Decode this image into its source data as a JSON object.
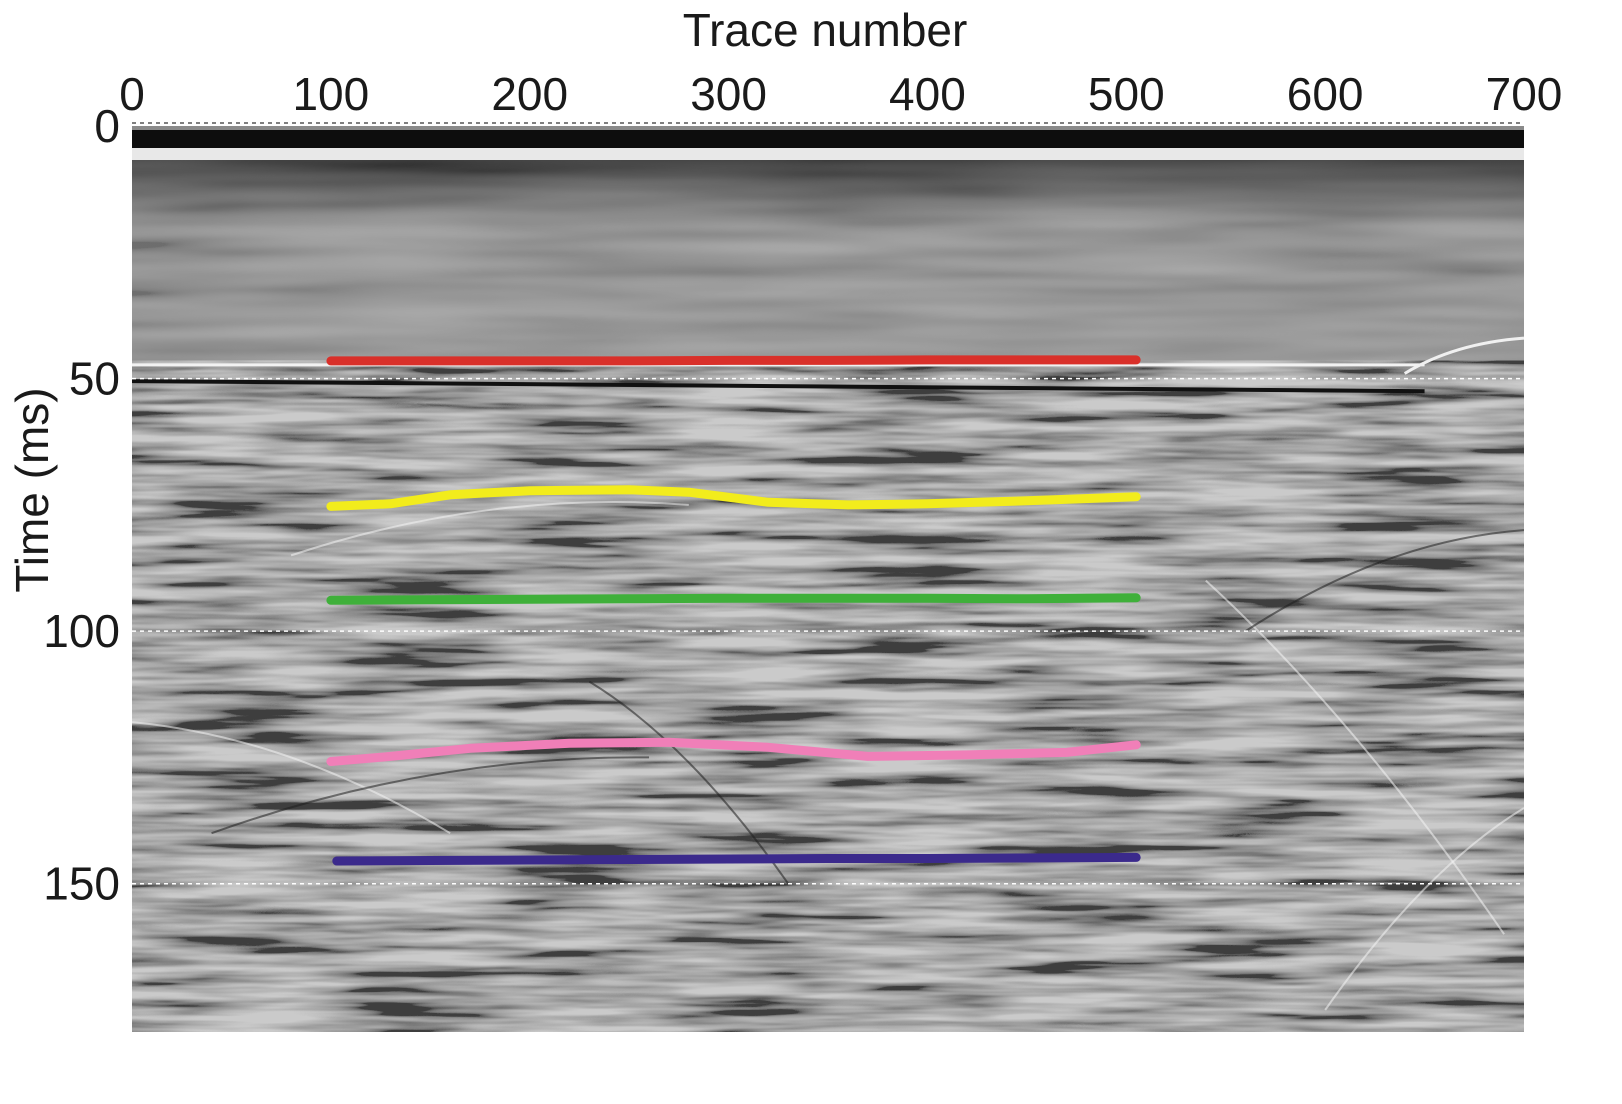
{
  "chart_data": {
    "type": "line",
    "xlabel": "Trace number",
    "ylabel": "Time (ms)",
    "xlim": [
      0,
      700
    ],
    "ylim": [
      0,
      178
    ],
    "y_inverted": true,
    "x_ticks": [
      0,
      100,
      200,
      300,
      400,
      500,
      600,
      700
    ],
    "x_tick_labels": [
      "0",
      "100",
      "200",
      "300",
      "400",
      "500",
      "600",
      "700"
    ],
    "y_ticks": [
      0,
      50,
      100,
      150
    ],
    "y_tick_labels": [
      "0",
      "50",
      "100",
      "150"
    ],
    "gridlines_ms": [
      0,
      50,
      100,
      150
    ],
    "background": "grayscale seismic section",
    "series": [
      {
        "color": "#d9302a",
        "x": [
          100,
          150,
          200,
          250,
          300,
          350,
          400,
          450,
          505
        ],
        "y": [
          46.5,
          46.5,
          46.5,
          46.5,
          46.4,
          46.4,
          46.3,
          46.3,
          46.3
        ]
      },
      {
        "color": "#f2ec1c",
        "x": [
          100,
          130,
          160,
          200,
          250,
          280,
          320,
          360,
          400,
          450,
          505
        ],
        "y": [
          75.3,
          74.8,
          73.0,
          72.2,
          72.0,
          72.5,
          74.5,
          75.0,
          74.8,
          74.2,
          73.4
        ]
      },
      {
        "color": "#3fb03a",
        "x": [
          100,
          150,
          200,
          250,
          300,
          350,
          400,
          450,
          505
        ],
        "y": [
          93.9,
          93.8,
          93.7,
          93.6,
          93.5,
          93.5,
          93.5,
          93.6,
          93.4
        ]
      },
      {
        "color": "#f07fb8",
        "x": [
          100,
          130,
          170,
          220,
          270,
          320,
          370,
          420,
          470,
          505
        ],
        "y": [
          125.8,
          124.8,
          123.2,
          122.2,
          122.0,
          123.0,
          124.8,
          124.5,
          124.0,
          122.5
        ]
      },
      {
        "color": "#3b2a8c",
        "x": [
          103,
          150,
          200,
          250,
          300,
          350,
          400,
          450,
          505
        ],
        "y": [
          145.5,
          145.4,
          145.3,
          145.2,
          145.1,
          145.0,
          145.0,
          144.9,
          144.8
        ]
      }
    ]
  }
}
